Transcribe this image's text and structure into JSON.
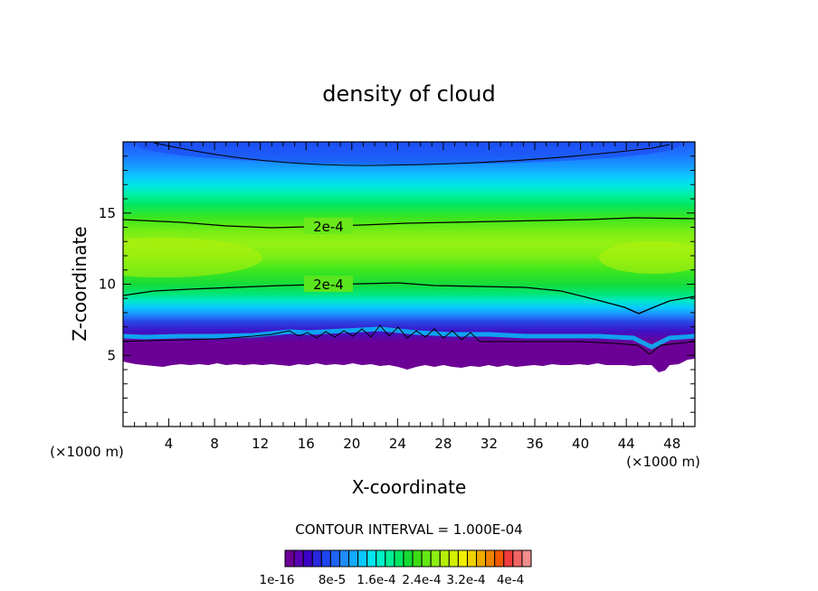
{
  "chart_data": {
    "type": "heatmap",
    "title": "density of cloud",
    "xlabel": "X-coordinate",
    "ylabel": "Z-coordinate",
    "x_unit": "(×1000 m)",
    "y_unit": "(×1000 m)",
    "xlim": [
      0,
      50
    ],
    "ylim": [
      0,
      20
    ],
    "x_ticks": [
      4,
      8,
      12,
      16,
      20,
      24,
      28,
      32,
      36,
      40,
      44,
      48
    ],
    "y_ticks": [
      5,
      10,
      15
    ],
    "contour_interval_text": "CONTOUR INTERVAL = 1.000E-04",
    "contour_labels": [
      {
        "text": "2e-4",
        "x": 18,
        "z": 14.2
      },
      {
        "text": "2e-4",
        "x": 18,
        "z": 10.1
      }
    ],
    "colorbar": {
      "colors": [
        "#6c0096",
        "#5a00b4",
        "#3c00c8",
        "#2828dc",
        "#1e46f0",
        "#1e64f5",
        "#1e8cff",
        "#14aaff",
        "#0ac8ff",
        "#00e6f0",
        "#00f0c8",
        "#00f096",
        "#00e664",
        "#14dc32",
        "#3cdc14",
        "#64e614",
        "#8cf014",
        "#b4f00a",
        "#d2f000",
        "#f0f000",
        "#f0d200",
        "#f0aa00",
        "#f08200",
        "#f05a00",
        "#f03c3c",
        "#f06464",
        "#f08c8c"
      ],
      "labels": [
        "1e-16",
        "8e-5",
        "1.6e-4",
        "2.4e-4",
        "3.2e-4",
        "4e-4"
      ]
    },
    "field_colors": {
      "base_dark": "#6c0096",
      "cloud_core": "#a0f014",
      "upper_blue": "#1e6ef0"
    }
  }
}
